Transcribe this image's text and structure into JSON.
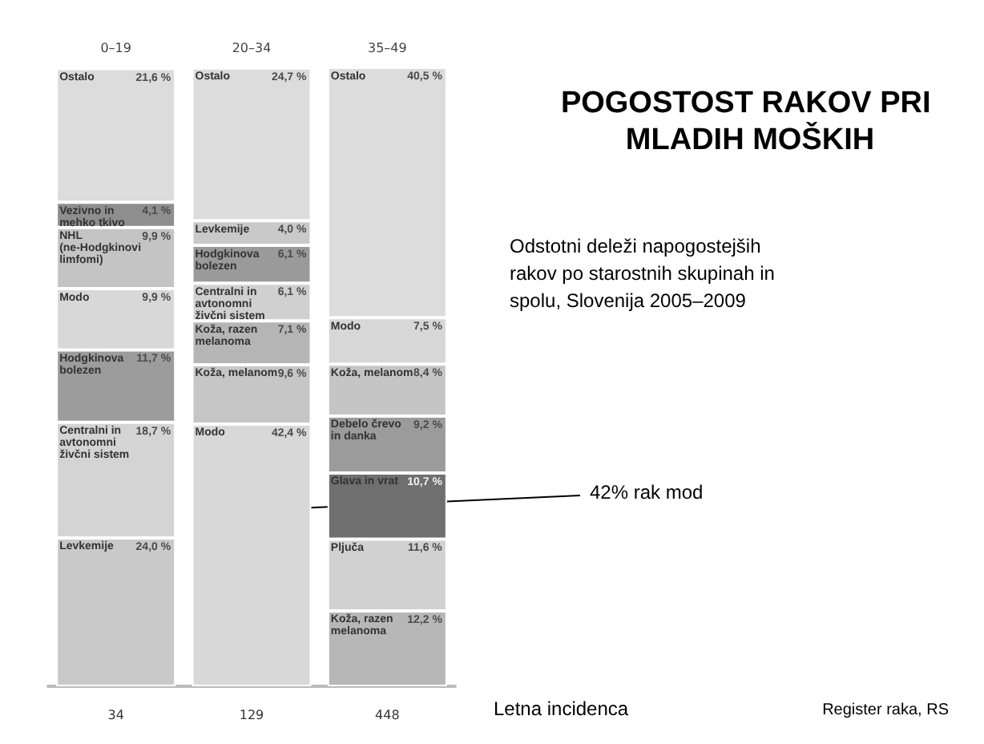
{
  "chart_data": {
    "type": "bar",
    "stacked": true,
    "title": "POGOSTOST RAKOV PRI MLADIH MOŠKIH",
    "subtitle": "Odstotni deleži napogostejših rakov po starostnih skupinah in spolu, Slovenija 2005–2009",
    "categories": [
      "0–19",
      "20–34",
      "35–49"
    ],
    "legend": false,
    "series": [
      {
        "name": "Levkemije",
        "color": "#c9c9c9",
        "values": [
          24.0,
          null,
          null
        ],
        "value_labels": [
          "24,0 %",
          null,
          null
        ]
      },
      {
        "name": "Centralni in avtonomni živčni sistem",
        "color": "#d4d4d4",
        "values": [
          18.7,
          null,
          null
        ],
        "value_labels": [
          "18,7 %",
          null,
          null
        ]
      },
      {
        "name": "Hodgkinova bolezen",
        "color": "#9c9c9c",
        "values": [
          11.7,
          null,
          null
        ],
        "value_labels": [
          "11,7 %",
          null,
          null
        ]
      },
      {
        "name": "Modo",
        "color": "#d8d8d8",
        "values": [
          9.9,
          null,
          null
        ],
        "value_labels": [
          "9,9 %",
          null,
          null
        ]
      },
      {
        "name": "NHL (ne-Hodgkinovi limfomi)",
        "color": "#c4c4c4",
        "values": [
          9.9,
          null,
          null
        ],
        "value_labels": [
          "9,9 %",
          null,
          null
        ]
      },
      {
        "name": "Vezivno in mehko tkivo",
        "color": "#8e8e8e",
        "values": [
          4.1,
          null,
          null
        ],
        "value_labels": [
          "4,1 %",
          null,
          null
        ]
      },
      {
        "name": "Ostalo",
        "color": "#dcdcdc",
        "values": [
          21.6,
          null,
          null
        ],
        "value_labels": [
          "21,6 %",
          null,
          null
        ]
      },
      {
        "name": "Modo",
        "color": "#d8d8d8",
        "values": [
          null,
          42.4,
          null
        ],
        "value_labels": [
          null,
          "42,4 %",
          null
        ]
      },
      {
        "name": "Koža, melanom",
        "color": "#c6c6c6",
        "values": [
          null,
          9.6,
          null
        ],
        "value_labels": [
          null,
          "9,6 %",
          null
        ]
      },
      {
        "name": "Koža, razen melanoma",
        "color": "#b5b5b5",
        "values": [
          null,
          7.1,
          null
        ],
        "value_labels": [
          null,
          "7,1 %",
          null
        ]
      },
      {
        "name": "Centralni in avtonomni živčni sistem",
        "color": "#d0d0d0",
        "values": [
          null,
          6.1,
          null
        ],
        "value_labels": [
          null,
          "6,1 %",
          null
        ]
      },
      {
        "name": "Hodgkinova bolezen",
        "color": "#9a9a9a",
        "values": [
          null,
          6.1,
          null
        ],
        "value_labels": [
          null,
          "6,1 %",
          null
        ]
      },
      {
        "name": "Levkemije",
        "color": "#c9c9c9",
        "values": [
          null,
          4.0,
          null
        ],
        "value_labels": [
          null,
          "4,0 %",
          null
        ]
      },
      {
        "name": "Ostalo",
        "color": "#dcdcdc",
        "values": [
          null,
          24.7,
          null
        ],
        "value_labels": [
          null,
          "24,7 %",
          null
        ]
      },
      {
        "name": "Koža, razen melanoma",
        "color": "#b7b7b7",
        "values": [
          null,
          null,
          12.2
        ],
        "value_labels": [
          null,
          null,
          "12,2 %"
        ]
      },
      {
        "name": "Pljuča",
        "color": "#d1d1d1",
        "values": [
          null,
          null,
          11.6
        ],
        "value_labels": [
          null,
          null,
          "11,6 %"
        ]
      },
      {
        "name": "Glava in vrat",
        "color": "#6f6f6f",
        "values": [
          null,
          null,
          10.7
        ],
        "value_labels": [
          null,
          null,
          "10,7 %"
        ]
      },
      {
        "name": "Debelo črevo in danka",
        "color": "#9b9b9b",
        "values": [
          null,
          null,
          9.2
        ],
        "value_labels": [
          null,
          null,
          "9,2 %"
        ]
      },
      {
        "name": "Koža, melanom",
        "color": "#c5c5c5",
        "values": [
          null,
          null,
          8.4
        ],
        "value_labels": [
          null,
          null,
          "8,4 %"
        ]
      },
      {
        "name": "Modo",
        "color": "#d7d7d7",
        "values": [
          null,
          null,
          7.5
        ],
        "value_labels": [
          null,
          null,
          "7,5 %"
        ]
      },
      {
        "name": "Ostalo",
        "color": "#dcdcdc",
        "values": [
          null,
          null,
          40.5
        ],
        "value_labels": [
          null,
          null,
          "40,5 %"
        ]
      }
    ],
    "annotations": [
      "34",
      "129",
      "448",
      "Letna incidenca",
      "Register raka, RS",
      "42% rak mod"
    ]
  }
}
